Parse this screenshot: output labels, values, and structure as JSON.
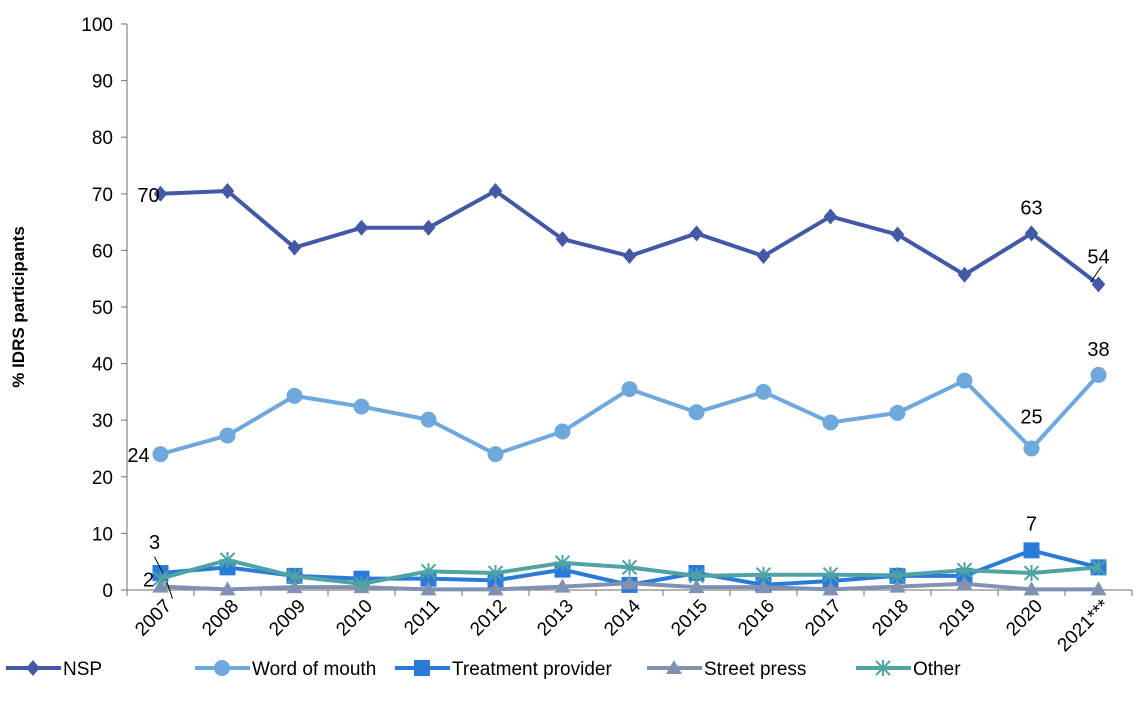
{
  "chart_data": {
    "type": "line",
    "title": "",
    "xlabel": "",
    "ylabel": "% IDRS participants",
    "ylim": [
      0,
      100
    ],
    "yticks": [
      0,
      10,
      20,
      30,
      40,
      50,
      60,
      70,
      80,
      90,
      100
    ],
    "grid": false,
    "legend": "bottom",
    "categories": [
      "2007",
      "2008",
      "2009",
      "2010",
      "2011",
      "2012",
      "2013",
      "2014",
      "2015",
      "2016",
      "2017",
      "2018",
      "2019",
      "2020",
      "2021***"
    ],
    "series": [
      {
        "name": "NSP",
        "color": "#4359A6",
        "marker": "diamond",
        "values": [
          70,
          70.5,
          60.5,
          64,
          64,
          70.5,
          62,
          59,
          63,
          59,
          66,
          62.8,
          55.7,
          63,
          54
        ]
      },
      {
        "name": "Word of mouth",
        "color": "#6FA8DC",
        "marker": "circle",
        "values": [
          24,
          27.3,
          34.3,
          32.4,
          30.1,
          24,
          28,
          35.5,
          31.4,
          35,
          29.6,
          31.3,
          37,
          25,
          38
        ]
      },
      {
        "name": "Treatment provider",
        "color": "#2A7BD8",
        "marker": "square",
        "values": [
          3,
          4,
          2.5,
          2,
          2,
          1.7,
          3.6,
          0.9,
          3,
          0.9,
          1.6,
          2.5,
          2.5,
          7,
          4
        ]
      },
      {
        "name": "Street press",
        "color": "#8092B2",
        "marker": "triangle",
        "values": [
          0.6,
          0.1,
          0.5,
          0.5,
          0.1,
          0.1,
          0.6,
          1.2,
          0.5,
          0.5,
          0.1,
          0.6,
          1.1,
          0.1,
          0.1
        ]
      },
      {
        "name": "Other",
        "color": "#4FA3A5",
        "marker": "star",
        "values": [
          2,
          5.3,
          2.4,
          1.1,
          3.3,
          3,
          4.8,
          4,
          2.5,
          2.7,
          2.7,
          2.6,
          3.5,
          3,
          4
        ]
      }
    ],
    "data_labels": [
      {
        "series": 0,
        "index": 0,
        "text": "70"
      },
      {
        "series": 0,
        "index": 13,
        "text": "63"
      },
      {
        "series": 0,
        "index": 14,
        "text": "54"
      },
      {
        "series": 1,
        "index": 0,
        "text": "24"
      },
      {
        "series": 1,
        "index": 13,
        "text": "25"
      },
      {
        "series": 1,
        "index": 14,
        "text": "38"
      },
      {
        "series": 2,
        "index": 0,
        "text": "3"
      },
      {
        "series": 2,
        "index": 13,
        "text": "7"
      },
      {
        "series": 4,
        "index": 0,
        "text": "2"
      }
    ]
  }
}
